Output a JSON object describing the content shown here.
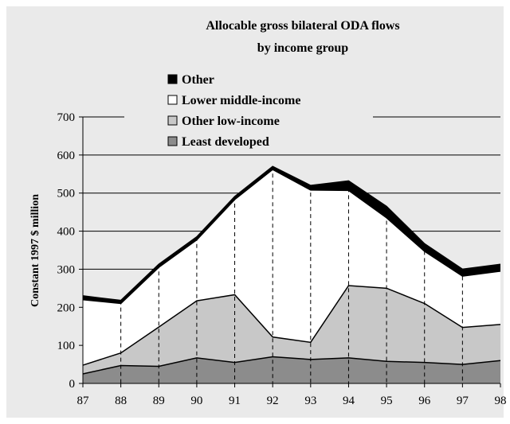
{
  "chart_data": {
    "type": "area",
    "title_line1": "Allocable gross bilateral ODA flows",
    "title_line2": "by income group",
    "ylabel": "Constant 1997 $ million",
    "xlabel": "",
    "categories": [
      "87",
      "88",
      "89",
      "90",
      "91",
      "92",
      "93",
      "94",
      "95",
      "96",
      "97",
      "98"
    ],
    "ylim": [
      0,
      700
    ],
    "yticks": [
      0,
      100,
      200,
      300,
      400,
      500,
      600,
      700
    ],
    "stacked": true,
    "grid": true,
    "legend_position": "top-left",
    "series": [
      {
        "name": "Least developed",
        "color": "#8c8c8c",
        "values": [
          25,
          47,
          45,
          67,
          55,
          70,
          63,
          67,
          58,
          55,
          50,
          60
        ]
      },
      {
        "name": "Other low-income",
        "color": "#c8c8c8",
        "values": [
          23,
          33,
          103,
          150,
          178,
          52,
          45,
          190,
          192,
          155,
          97,
          95
        ]
      },
      {
        "name": "Lower middle-income",
        "color": "#ffffff",
        "values": [
          172,
          130,
          157,
          160,
          250,
          440,
          400,
          250,
          185,
          137,
          135,
          140
        ]
      },
      {
        "name": "Other",
        "color": "#000000",
        "values": [
          10,
          8,
          8,
          8,
          8,
          8,
          12,
          25,
          30,
          20,
          18,
          18
        ]
      }
    ]
  }
}
